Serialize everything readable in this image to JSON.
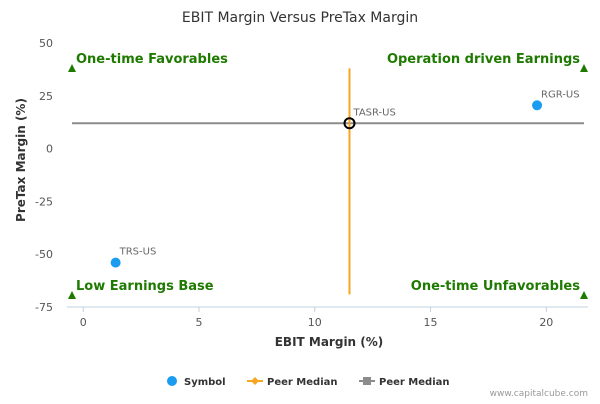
{
  "chart_data": {
    "type": "scatter",
    "title": "EBIT Margin Versus PreTax Margin",
    "xlabel": "EBIT Margin (%)",
    "ylabel": "PreTax Margin (%)",
    "xlim": [
      -0.7,
      21.8
    ],
    "ylim": [
      -75,
      50
    ],
    "x_ticks": [
      0,
      5,
      10,
      15,
      20
    ],
    "y_ticks": [
      50,
      25,
      0,
      -25,
      -50,
      -75
    ],
    "grid": false,
    "series": [
      {
        "name": "Symbol",
        "color": "#1a9cf0",
        "points": [
          {
            "label": "RGR-US",
            "x": 19.6,
            "y": 20.5
          },
          {
            "label": "TRS-US",
            "x": 1.4,
            "y": -54
          }
        ]
      }
    ],
    "highlight_point": {
      "label": "TASR-US",
      "x": 11.5,
      "y": 12
    },
    "peer_median_x": {
      "name": "Peer Median",
      "value": 11.5,
      "color": "#f5a623",
      "y_range": [
        38,
        -69
      ]
    },
    "peer_median_y": {
      "name": "Peer Median",
      "value": 12,
      "color": "#8c8c8c"
    },
    "quadrant_labels": {
      "top_left": "One-time Favorables",
      "top_right": "Operation driven Earnings",
      "bottom_left": "Low Earnings Base",
      "bottom_right": "One-time Unfavorables",
      "color": "#1e7a00"
    },
    "legend": {
      "placement": "bottom",
      "items": [
        {
          "label": "Symbol",
          "marker": "circle",
          "color": "#1a9cf0"
        },
        {
          "label": "Peer Median",
          "marker": "diamond-line",
          "color": "#f5a623"
        },
        {
          "label": "Peer Median",
          "marker": "square-line",
          "color": "#8c8c8c"
        }
      ]
    },
    "credit": "www.capitalcube.com"
  }
}
